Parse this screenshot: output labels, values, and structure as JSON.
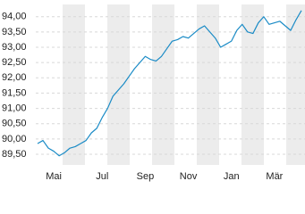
{
  "chart_data": {
    "type": "line",
    "categories": [
      null,
      null,
      null,
      "Mai",
      null,
      null,
      null,
      null,
      null,
      null,
      null,
      null,
      "Jul",
      null,
      null,
      null,
      null,
      null,
      null,
      null,
      "Sep",
      null,
      null,
      null,
      null,
      null,
      null,
      null,
      "Nov",
      null,
      null,
      null,
      null,
      null,
      null,
      null,
      "Jan",
      null,
      null,
      null,
      null,
      null,
      null,
      null,
      "Mär",
      null,
      null,
      null,
      null,
      null
    ],
    "series": [
      {
        "color": "#1a8bc6",
        "values": [
          89.85,
          89.95,
          89.7,
          89.6,
          89.45,
          89.55,
          89.7,
          89.75,
          89.85,
          89.95,
          90.2,
          90.35,
          90.7,
          91.0,
          91.4,
          91.6,
          91.8,
          92.05,
          92.3,
          92.5,
          92.7,
          92.6,
          92.55,
          92.7,
          92.95,
          93.2,
          93.25,
          93.35,
          93.3,
          93.45,
          93.6,
          93.7,
          93.5,
          93.3,
          93.0,
          93.1,
          93.2,
          93.55,
          93.75,
          93.5,
          93.45,
          93.8,
          94.0,
          93.75,
          93.8,
          93.85,
          93.7,
          93.55,
          93.9,
          94.2
        ]
      }
    ],
    "ylim": [
      89.15,
      94.4
    ],
    "yticks": [
      {
        "value": 89.5,
        "label": "89,50"
      },
      {
        "value": 90.0,
        "label": "90,00"
      },
      {
        "value": 90.5,
        "label": "90,50"
      },
      {
        "value": 91.0,
        "label": "91,00"
      },
      {
        "value": 91.5,
        "label": "91,50"
      },
      {
        "value": 92.0,
        "label": "92,00"
      },
      {
        "value": 92.5,
        "label": "92,50"
      },
      {
        "value": 93.0,
        "label": "93,00"
      },
      {
        "value": 93.5,
        "label": "93,50"
      },
      {
        "value": 94.0,
        "label": "94,00"
      }
    ],
    "grid": true
  }
}
